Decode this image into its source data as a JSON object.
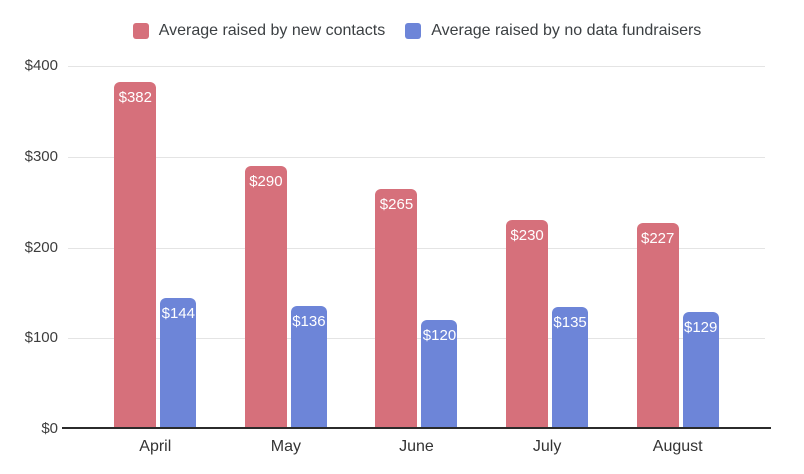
{
  "colors": {
    "series_new_contacts": "#D6707B",
    "series_no_data": "#6D85D8",
    "gridline": "#E4E4E4",
    "axis_baseline": "#2B2B2B",
    "axis_text": "#3D3D3D",
    "legend_text": "#3C4043",
    "bar_label_text": "#FFFFFF",
    "background": "#FFFFFF"
  },
  "chart_data": {
    "type": "bar",
    "title": "",
    "xlabel": "",
    "ylabel": "",
    "ylim": [
      0,
      400
    ],
    "grid": true,
    "legend_position": "top",
    "categories": [
      "April",
      "May",
      "June",
      "July",
      "August"
    ],
    "series": [
      {
        "key": "new-contacts",
        "name": "Average raised by new contacts",
        "color": "#D6707B",
        "values": [
          382,
          290,
          265,
          230,
          227
        ],
        "labels": [
          "$382",
          "$290",
          "$265",
          "$230",
          "$227"
        ]
      },
      {
        "key": "no-data-fundraisers",
        "name": "Average raised by no data fundraisers",
        "color": "#6D85D8",
        "values": [
          144,
          136,
          120,
          135,
          129
        ],
        "labels": [
          "$144",
          "$136",
          "$120",
          "$135",
          "$129"
        ]
      }
    ],
    "y_ticks": [
      {
        "value": 0,
        "label": "$0"
      },
      {
        "value": 100,
        "label": "$100"
      },
      {
        "value": 200,
        "label": "$200"
      },
      {
        "value": 300,
        "label": "$300"
      },
      {
        "value": 400,
        "label": "$400"
      }
    ]
  }
}
